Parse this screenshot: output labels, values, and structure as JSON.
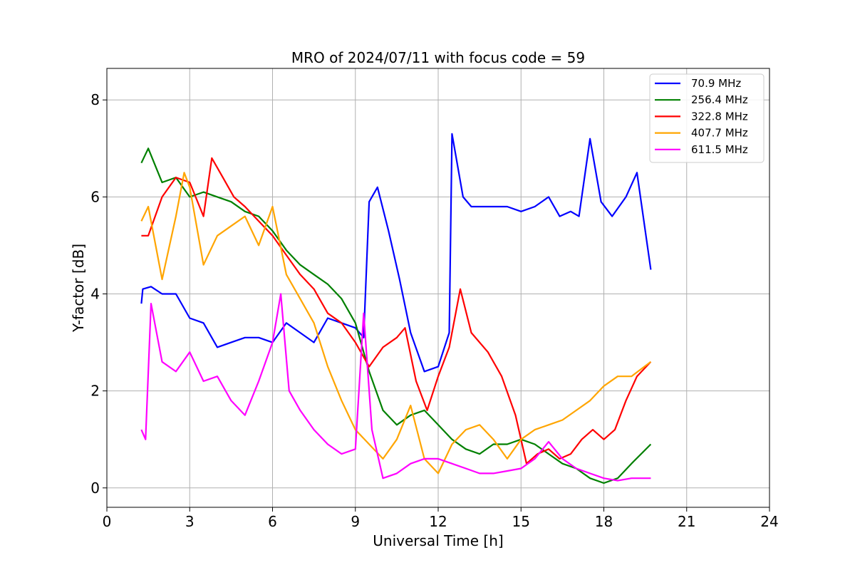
{
  "chart_data": {
    "type": "line",
    "title": "MRO of 2024/07/11 with focus code = 59",
    "xlabel": "Universal Time [h]",
    "ylabel": "Y-factor [dB]",
    "xlim": [
      0,
      24
    ],
    "ylim": [
      -0.4,
      8.65
    ],
    "xticks": [
      0,
      3,
      6,
      9,
      12,
      15,
      18,
      21,
      24
    ],
    "yticks": [
      0,
      2,
      4,
      6,
      8
    ],
    "grid": true,
    "legend_position": "top-right",
    "series": [
      {
        "name": " 70.9 MHz",
        "color": "#0000ff",
        "x": [
          1.25,
          1.3,
          1.6,
          2.0,
          2.5,
          3.0,
          3.5,
          4.0,
          4.5,
          5.0,
          5.5,
          6.0,
          6.5,
          7.0,
          7.5,
          8.0,
          8.5,
          9.0,
          9.3,
          9.5,
          9.8,
          10.2,
          10.6,
          11.0,
          11.5,
          12.0,
          12.4,
          12.5,
          12.9,
          13.2,
          13.8,
          14.5,
          15.0,
          15.5,
          16.0,
          16.4,
          16.8,
          17.1,
          17.5,
          17.9,
          18.3,
          18.8,
          19.2,
          19.7
        ],
        "y": [
          3.8,
          4.1,
          4.15,
          4.0,
          4.0,
          3.5,
          3.4,
          2.9,
          3.0,
          3.1,
          3.1,
          3.0,
          3.4,
          3.2,
          3.0,
          3.5,
          3.4,
          3.3,
          3.1,
          5.9,
          6.2,
          5.3,
          4.3,
          3.2,
          2.4,
          2.5,
          3.2,
          7.3,
          6.0,
          5.8,
          5.8,
          5.8,
          5.7,
          5.8,
          6.0,
          5.6,
          5.7,
          5.6,
          7.2,
          5.9,
          5.6,
          6.0,
          6.5,
          4.5
        ]
      },
      {
        "name": "256.4 MHz",
        "color": "#008000",
        "x": [
          1.25,
          1.5,
          2.0,
          2.5,
          3.0,
          3.5,
          4.0,
          4.5,
          5.0,
          5.5,
          6.0,
          6.5,
          7.0,
          7.5,
          8.0,
          8.5,
          9.0,
          9.5,
          10.0,
          10.5,
          11.0,
          11.5,
          12.0,
          12.5,
          13.0,
          13.5,
          14.0,
          14.5,
          15.0,
          15.5,
          16.0,
          16.5,
          17.0,
          17.5,
          18.0,
          18.5,
          19.0,
          19.7
        ],
        "y": [
          6.7,
          7.0,
          6.3,
          6.4,
          6.0,
          6.1,
          6.0,
          5.9,
          5.7,
          5.6,
          5.3,
          4.9,
          4.6,
          4.4,
          4.2,
          3.9,
          3.4,
          2.4,
          1.6,
          1.3,
          1.5,
          1.6,
          1.3,
          1.0,
          0.8,
          0.7,
          0.9,
          0.9,
          1.0,
          0.9,
          0.7,
          0.5,
          0.4,
          0.2,
          0.1,
          0.2,
          0.5,
          0.9
        ]
      },
      {
        "name": "322.8 MHz",
        "color": "#ff0000",
        "x": [
          1.25,
          1.5,
          2.0,
          2.5,
          3.0,
          3.5,
          3.8,
          4.2,
          4.6,
          5.0,
          5.5,
          6.0,
          6.5,
          7.0,
          7.5,
          8.0,
          8.5,
          9.0,
          9.5,
          10.0,
          10.5,
          10.8,
          11.2,
          11.6,
          12.0,
          12.4,
          12.8,
          13.2,
          13.8,
          14.3,
          14.8,
          15.2,
          15.6,
          16.0,
          16.4,
          16.8,
          17.2,
          17.6,
          18.0,
          18.4,
          18.8,
          19.2,
          19.7
        ],
        "y": [
          5.2,
          5.2,
          6.0,
          6.4,
          6.3,
          5.6,
          6.8,
          6.4,
          6.0,
          5.8,
          5.5,
          5.2,
          4.8,
          4.4,
          4.1,
          3.6,
          3.4,
          3.0,
          2.5,
          2.9,
          3.1,
          3.3,
          2.2,
          1.6,
          2.3,
          2.9,
          4.1,
          3.2,
          2.8,
          2.3,
          1.5,
          0.5,
          0.7,
          0.8,
          0.6,
          0.7,
          1.0,
          1.2,
          1.0,
          1.2,
          1.8,
          2.3,
          2.6
        ]
      },
      {
        "name": "407.7 MHz",
        "color": "#ffa500",
        "x": [
          1.25,
          1.5,
          2.0,
          2.5,
          2.8,
          3.0,
          3.5,
          4.0,
          4.5,
          5.0,
          5.5,
          6.0,
          6.5,
          7.0,
          7.5,
          8.0,
          8.5,
          9.0,
          9.5,
          10.0,
          10.5,
          11.0,
          11.5,
          12.0,
          12.5,
          13.0,
          13.5,
          14.0,
          14.5,
          15.0,
          15.5,
          16.0,
          16.5,
          17.0,
          17.5,
          18.0,
          18.5,
          19.0,
          19.7
        ],
        "y": [
          5.5,
          5.8,
          4.3,
          5.6,
          6.5,
          6.2,
          4.6,
          5.2,
          5.4,
          5.6,
          5.0,
          5.8,
          4.4,
          3.9,
          3.4,
          2.5,
          1.8,
          1.2,
          0.9,
          0.6,
          1.0,
          1.7,
          0.6,
          0.3,
          0.9,
          1.2,
          1.3,
          1.0,
          0.6,
          1.0,
          1.2,
          1.3,
          1.4,
          1.6,
          1.8,
          2.1,
          2.3,
          2.3,
          2.6
        ]
      },
      {
        "name": "611.5 MHz",
        "color": "#ff00ff",
        "x": [
          1.25,
          1.4,
          1.6,
          2.0,
          2.5,
          3.0,
          3.5,
          4.0,
          4.5,
          5.0,
          5.5,
          6.0,
          6.3,
          6.6,
          7.0,
          7.5,
          8.0,
          8.5,
          9.0,
          9.3,
          9.6,
          10.0,
          10.5,
          11.0,
          11.5,
          12.0,
          12.5,
          13.0,
          13.5,
          14.0,
          14.5,
          15.0,
          15.5,
          16.0,
          16.5,
          17.0,
          17.5,
          18.0,
          18.5,
          19.0,
          19.7
        ],
        "y": [
          1.2,
          1.0,
          3.8,
          2.6,
          2.4,
          2.8,
          2.2,
          2.3,
          1.8,
          1.5,
          2.2,
          3.0,
          4.0,
          2.0,
          1.6,
          1.2,
          0.9,
          0.7,
          0.8,
          3.6,
          1.2,
          0.2,
          0.3,
          0.5,
          0.6,
          0.6,
          0.5,
          0.4,
          0.3,
          0.3,
          0.35,
          0.4,
          0.6,
          0.95,
          0.6,
          0.4,
          0.3,
          0.2,
          0.15,
          0.2,
          0.2
        ]
      }
    ]
  }
}
